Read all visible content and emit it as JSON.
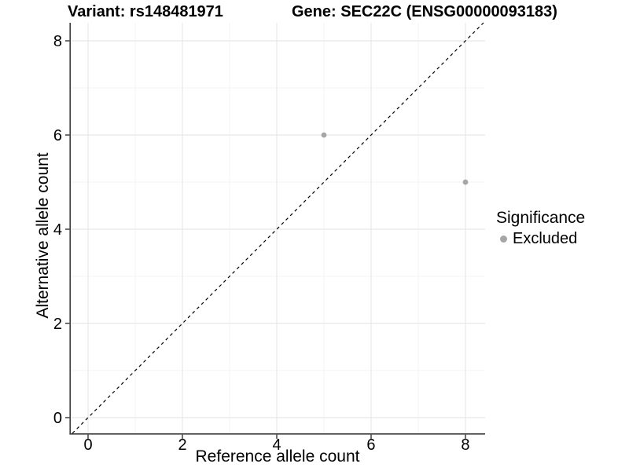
{
  "titles": {
    "variant": "Variant: rs148481971",
    "gene": "Gene: SEC22C (ENSG00000093183)"
  },
  "legend": {
    "title": "Significance",
    "items": [
      {
        "label": "Excluded",
        "color": "#a6a6a6",
        "marker": "circle-icon"
      }
    ]
  },
  "colors": {
    "background": "#ffffff",
    "point": "#a6a6a6",
    "grid_major": "#e8e8e8",
    "grid_minor": "#f3f3f3",
    "axis_line": "#3c3c3c",
    "tick_mark": "#333333",
    "text": "#000000",
    "identity_line": "#000000"
  },
  "chart_data": {
    "type": "scatter",
    "title": "Variant: rs148481971    Gene: SEC22C (ENSG00000093183)",
    "xlabel": "Reference allele count",
    "ylabel": "Alternative allele count",
    "xlim": [
      -0.3667,
      8.4167
    ],
    "ylim": [
      -0.3333,
      8.3833
    ],
    "x_ticks": [
      0,
      2,
      4,
      6,
      8
    ],
    "y_ticks": [
      0,
      2,
      4,
      6,
      8
    ],
    "x_tick_labels": [
      "0",
      "2",
      "4",
      "6",
      "8"
    ],
    "y_tick_labels": [
      "0",
      "2",
      "4",
      "6",
      "8"
    ],
    "x_minor_ticks": [
      1,
      3,
      5,
      7
    ],
    "y_minor_ticks": [
      1,
      3,
      5,
      7
    ],
    "grid": true,
    "legend_position": "right",
    "series": [
      {
        "name": "Excluded",
        "color": "#a6a6a6",
        "points": [
          [
            5,
            6
          ],
          [
            8,
            5
          ]
        ]
      }
    ],
    "abline": {
      "slope": 1,
      "intercept": 0,
      "style": "dashed",
      "color": "#000000"
    }
  }
}
